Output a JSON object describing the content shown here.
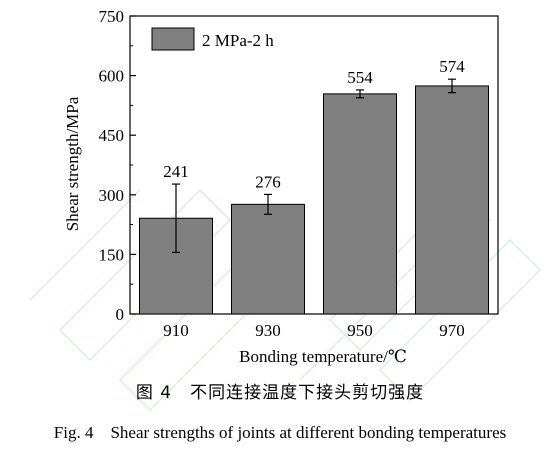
{
  "chart_data": {
    "type": "bar",
    "categories": [
      "910",
      "930",
      "950",
      "970"
    ],
    "series": [
      {
        "name": "2 MPa-2 h",
        "values": [
          241,
          276,
          554,
          574
        ],
        "errors": [
          86,
          25,
          10,
          17
        ],
        "labels": [
          "241",
          "276",
          "554",
          "574"
        ]
      }
    ],
    "xlabel": "Bonding temperature/℃",
    "ylabel": "Shear strength/MPa",
    "ylim": [
      0,
      750
    ],
    "yticks": [
      0,
      150,
      300,
      450,
      600,
      750
    ],
    "legend_position": "top-left",
    "grid": false,
    "colors": {
      "bar_fill": "#808080",
      "bar_stroke": "#000000",
      "watermark": "#c8ecc8"
    }
  },
  "caption": {
    "cn": "图 4　不同连接温度下接头剪切强度",
    "en": "Fig. 4　Shear strengths of joints at different bonding temperatures"
  }
}
